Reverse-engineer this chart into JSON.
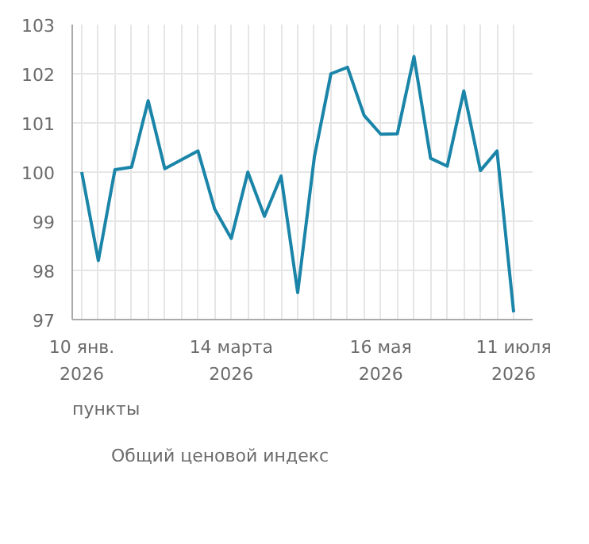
{
  "chart_data": {
    "type": "line",
    "annotations": [
      "пункты"
    ],
    "x": [
      "2026-01-10",
      "2026-01-17",
      "2026-01-24",
      "2026-01-31",
      "2026-02-07",
      "2026-02-14",
      "2026-02-21",
      "2026-02-28",
      "2026-03-07",
      "2026-03-14",
      "2026-03-21",
      "2026-03-28",
      "2026-04-04",
      "2026-04-11",
      "2026-04-18",
      "2026-04-25",
      "2026-05-02",
      "2026-05-09",
      "2026-05-16",
      "2026-05-23",
      "2026-05-30",
      "2026-06-06",
      "2026-06-13",
      "2026-06-20",
      "2026-06-27",
      "2026-07-04",
      "2026-07-11"
    ],
    "series": [
      {
        "name": "Общий ценовой индекс",
        "color": "#1a85a8",
        "values": [
          100.0,
          98.2,
          100.05,
          100.1,
          101.45,
          100.07,
          100.25,
          100.43,
          99.25,
          98.65,
          100.0,
          99.1,
          99.92,
          97.55,
          100.3,
          102.0,
          102.13,
          101.15,
          100.77,
          100.78,
          102.35,
          100.28,
          100.12,
          101.65,
          100.03,
          100.43,
          97.15
        ]
      }
    ],
    "xlim": [
      "2026-01-06",
      "2026-07-19"
    ],
    "xticks": [
      {
        "value": "2026-01-10",
        "label": "10 янв.\n2026"
      },
      {
        "value": "2026-01-17",
        "label": null
      },
      {
        "value": "2026-01-24",
        "label": null
      },
      {
        "value": "2026-01-31",
        "label": null
      },
      {
        "value": "2026-02-07",
        "label": null
      },
      {
        "value": "2026-02-14",
        "label": null
      },
      {
        "value": "2026-02-21",
        "label": null
      },
      {
        "value": "2026-02-28",
        "label": null
      },
      {
        "value": "2026-03-07",
        "label": null
      },
      {
        "value": "2026-03-14",
        "label": "14 марта\n2026"
      },
      {
        "value": "2026-03-21",
        "label": null
      },
      {
        "value": "2026-03-28",
        "label": null
      },
      {
        "value": "2026-04-04",
        "label": null
      },
      {
        "value": "2026-04-11",
        "label": null
      },
      {
        "value": "2026-04-18",
        "label": null
      },
      {
        "value": "2026-04-25",
        "label": null
      },
      {
        "value": "2026-05-02",
        "label": null
      },
      {
        "value": "2026-05-09",
        "label": null
      },
      {
        "value": "2026-05-16",
        "label": "16 мая\n2026"
      },
      {
        "value": "2026-05-23",
        "label": null
      },
      {
        "value": "2026-05-30",
        "label": null
      },
      {
        "value": "2026-06-06",
        "label": null
      },
      {
        "value": "2026-06-13",
        "label": null
      },
      {
        "value": "2026-06-20",
        "label": null
      },
      {
        "value": "2026-06-27",
        "label": null
      },
      {
        "value": "2026-07-04",
        "label": null
      },
      {
        "value": "2026-07-11",
        "label": "11 июля\n2026"
      }
    ],
    "ylim": [
      97,
      103
    ],
    "yticks": [
      97,
      98,
      99,
      100,
      101,
      102,
      103
    ],
    "grid": true,
    "legend": "bottom",
    "marker": "none",
    "line_style": "solid"
  }
}
